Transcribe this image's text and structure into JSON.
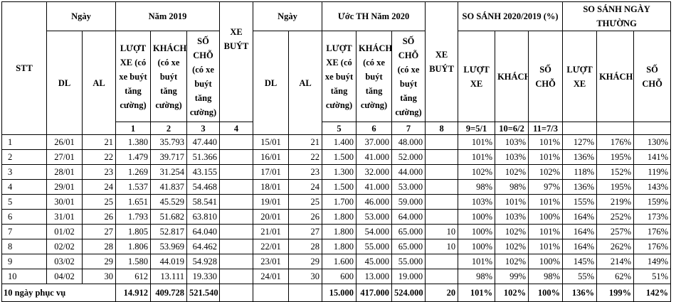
{
  "header": {
    "stt": "STT",
    "ngay": "Ngày",
    "nam_2019": "Năm 2019",
    "nam_2020": "Ước TH Năm 2020",
    "so_sanh_nam": "SO SÁNH 2020/2019 (%)",
    "so_sanh_ngay_thuong": "SO SÁNH NGÀY THƯỜNG",
    "dl": "DL",
    "al": "AL",
    "luot_xe_tc": "LƯỢT XE (có xe buýt tăng cường)",
    "khach_tc": "KHÁCH (có xe buýt tăng cường)",
    "so_cho_tc": "SỐ CHỖ (có xe buýt tăng cường)",
    "xe_buyt": "XE BUÝT",
    "luot_xe": "LƯỢT XE",
    "khach": "KHÁCH",
    "so_cho": "SỐ CHỖ",
    "column_numbers": [
      "1",
      "2",
      "3",
      "4",
      "5",
      "6",
      "7",
      "8",
      "9=5/1",
      "10=6/2",
      "11=7/3"
    ]
  },
  "rows": [
    {
      "stt": 1,
      "dl_2019": "26/01",
      "al_2019": 21,
      "luot_xe_2019": "1.380",
      "khach_2019": "35.793",
      "so_cho_2019": "47.440",
      "dl_2020": "15/01",
      "al_2020": 21,
      "luot_xe_2020": "1.400",
      "khach_2020": "37.000",
      "so_cho_2020": "48.000",
      "ss_luot_xe": "101%",
      "ss_khach": "103%",
      "ss_so_cho": "101%",
      "nt_luot_xe": "127%",
      "nt_khach": "176%",
      "nt_so_cho": "130%"
    },
    {
      "stt": 2,
      "dl_2019": "27/01",
      "al_2019": 22,
      "luot_xe_2019": "1.479",
      "khach_2019": "39.717",
      "so_cho_2019": "51.366",
      "dl_2020": "16/01",
      "al_2020": 22,
      "luot_xe_2020": "1.500",
      "khach_2020": "41.000",
      "so_cho_2020": "52.000",
      "ss_luot_xe": "101%",
      "ss_khach": "103%",
      "ss_so_cho": "101%",
      "nt_luot_xe": "136%",
      "nt_khach": "195%",
      "nt_so_cho": "141%"
    },
    {
      "stt": 3,
      "dl_2019": "28/01",
      "al_2019": 23,
      "luot_xe_2019": "1.269",
      "khach_2019": "31.254",
      "so_cho_2019": "43.155",
      "dl_2020": "17/01",
      "al_2020": 23,
      "luot_xe_2020": "1.300",
      "khach_2020": "32.000",
      "so_cho_2020": "44.000",
      "ss_luot_xe": "102%",
      "ss_khach": "102%",
      "ss_so_cho": "102%",
      "nt_luot_xe": "118%",
      "nt_khach": "152%",
      "nt_so_cho": "119%"
    },
    {
      "stt": 4,
      "dl_2019": "29/01",
      "al_2019": 24,
      "luot_xe_2019": "1.537",
      "khach_2019": "41.837",
      "so_cho_2019": "54.468",
      "dl_2020": "18/01",
      "al_2020": 24,
      "luot_xe_2020": "1.500",
      "khach_2020": "41.000",
      "so_cho_2020": "53.000",
      "ss_luot_xe": "98%",
      "ss_khach": "98%",
      "ss_so_cho": "97%",
      "nt_luot_xe": "136%",
      "nt_khach": "195%",
      "nt_so_cho": "143%"
    },
    {
      "stt": 5,
      "dl_2019": "30/01",
      "al_2019": 25,
      "luot_xe_2019": "1.651",
      "khach_2019": "45.529",
      "so_cho_2019": "58.541",
      "dl_2020": "19/01",
      "al_2020": 25,
      "luot_xe_2020": "1.700",
      "khach_2020": "46.000",
      "so_cho_2020": "59.000",
      "ss_luot_xe": "103%",
      "ss_khach": "101%",
      "ss_so_cho": "101%",
      "nt_luot_xe": "155%",
      "nt_khach": "219%",
      "nt_so_cho": "159%"
    },
    {
      "stt": 6,
      "dl_2019": "31/01",
      "al_2019": 26,
      "luot_xe_2019": "1.793",
      "khach_2019": "51.682",
      "so_cho_2019": "63.810",
      "dl_2020": "20/01",
      "al_2020": 26,
      "luot_xe_2020": "1.800",
      "khach_2020": "53.000",
      "so_cho_2020": "64.000",
      "ss_luot_xe": "100%",
      "ss_khach": "103%",
      "ss_so_cho": "100%",
      "nt_luot_xe": "164%",
      "nt_khach": "252%",
      "nt_so_cho": "173%"
    },
    {
      "stt": 7,
      "dl_2019": "01/02",
      "al_2019": 27,
      "luot_xe_2019": "1.805",
      "khach_2019": "52.817",
      "so_cho_2019": "64.040",
      "dl_2020": "21/01",
      "al_2020": 27,
      "luot_xe_2020": "1.800",
      "khach_2020": "54.000",
      "so_cho_2020": "65.000",
      "xe_buyt_2020": 10,
      "ss_luot_xe": "100%",
      "ss_khach": "102%",
      "ss_so_cho": "101%",
      "nt_luot_xe": "164%",
      "nt_khach": "257%",
      "nt_so_cho": "176%"
    },
    {
      "stt": 8,
      "dl_2019": "02/02",
      "al_2019": 28,
      "luot_xe_2019": "1.806",
      "khach_2019": "53.969",
      "so_cho_2019": "64.462",
      "dl_2020": "22/01",
      "al_2020": 28,
      "luot_xe_2020": "1.800",
      "khach_2020": "55.000",
      "so_cho_2020": "65.000",
      "xe_buyt_2020": 10,
      "ss_luot_xe": "100%",
      "ss_khach": "102%",
      "ss_so_cho": "101%",
      "nt_luot_xe": "164%",
      "nt_khach": "262%",
      "nt_so_cho": "176%"
    },
    {
      "stt": 9,
      "dl_2019": "03/02",
      "al_2019": 29,
      "luot_xe_2019": "1.580",
      "khach_2019": "44.019",
      "so_cho_2019": "54.928",
      "dl_2020": "23/01",
      "al_2020": 29,
      "luot_xe_2020": "1.600",
      "khach_2020": "45.000",
      "so_cho_2020": "55.000",
      "ss_luot_xe": "101%",
      "ss_khach": "102%",
      "ss_so_cho": "100%",
      "nt_luot_xe": "145%",
      "nt_khach": "214%",
      "nt_so_cho": "149%"
    },
    {
      "stt": 10,
      "dl_2019": "04/02",
      "al_2019": 30,
      "luot_xe_2019": "612",
      "khach_2019": "13.111",
      "so_cho_2019": "19.330",
      "dl_2020": "24/01",
      "al_2020": 30,
      "luot_xe_2020": "600",
      "khach_2020": "13.000",
      "so_cho_2020": "19.000",
      "ss_luot_xe": "98%",
      "ss_khach": "99%",
      "ss_so_cho": "98%",
      "nt_luot_xe": "55%",
      "nt_khach": "62%",
      "nt_so_cho": "51%"
    }
  ],
  "total": {
    "label": "10 ngày phục vụ",
    "luot_xe_2019": "14.912",
    "khach_2019": "409.728",
    "so_cho_2019": "521.540",
    "luot_xe_2020": "15.000",
    "khach_2020": "417.000",
    "so_cho_2020": "524.000",
    "xe_buyt_2020": 20,
    "ss_luot_xe": "101%",
    "ss_khach": "102%",
    "ss_so_cho": "100%",
    "nt_luot_xe": "136%",
    "nt_khach": "199%",
    "nt_so_cho": "142%"
  }
}
